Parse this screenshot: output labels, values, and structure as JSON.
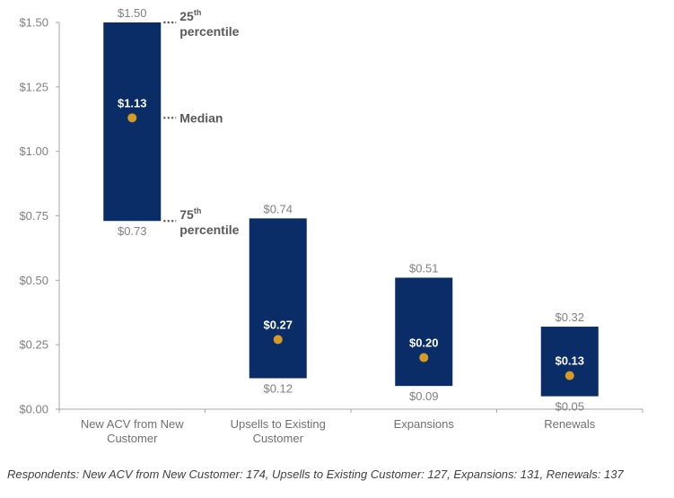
{
  "chart_data": {
    "type": "bar",
    "subtype": "floating-range-with-median",
    "categories": [
      "New ACV from New Customer",
      "Upsells to Existing Customer",
      "Expansions",
      "Renewals"
    ],
    "category_lines": [
      [
        "New ACV from New",
        "Customer"
      ],
      [
        "Upsells to Existing",
        "Customer"
      ],
      [
        "Expansions"
      ],
      [
        "Renewals"
      ]
    ],
    "series": [
      {
        "name": "25th percentile (top)",
        "values": [
          1.5,
          0.74,
          0.51,
          0.32
        ]
      },
      {
        "name": "Median",
        "values": [
          1.13,
          0.27,
          0.2,
          0.13
        ]
      },
      {
        "name": "75th percentile (bottom)",
        "values": [
          0.73,
          0.12,
          0.09,
          0.05
        ]
      }
    ],
    "top_labels": [
      "$1.50",
      "$0.74",
      "$0.51",
      "$0.32"
    ],
    "median_labels": [
      "$1.13",
      "$0.27",
      "$0.20",
      "$0.13"
    ],
    "bottom_labels": [
      "$0.73",
      "$0.12",
      "$0.09",
      "$0.05"
    ],
    "yticks": [
      0,
      0.25,
      0.5,
      0.75,
      1.0,
      1.25,
      1.5
    ],
    "ytick_labels": [
      "$0.00",
      "$0.25",
      "$0.50",
      "$0.75",
      "$1.00",
      "$1.25",
      "$1.50"
    ],
    "ylim": [
      0,
      1.5
    ],
    "title": "",
    "xlabel": "",
    "ylabel": "",
    "grid": false,
    "legend": "none",
    "annotations": [
      {
        "target": "top",
        "main": "25",
        "sup": "th",
        "line2": "percentile"
      },
      {
        "target": "median",
        "main": "Median"
      },
      {
        "target": "bottom",
        "main": "75",
        "sup": "th",
        "line2": "percentile"
      }
    ],
    "colors": {
      "bar": "#0b2d67",
      "median_dot": "#d79b23",
      "axis": "#a6a6a6"
    }
  },
  "footnote": "Respondents: New ACV from New Customer: 174, Upsells to Existing Customer: 127, Expansions: 131, Renewals: 137"
}
